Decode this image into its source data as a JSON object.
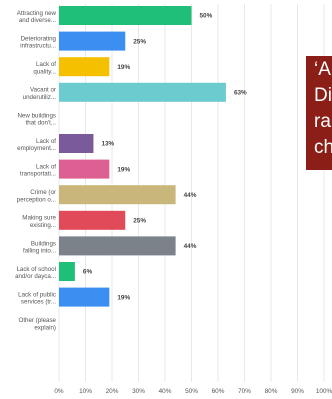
{
  "chart_data": {
    "type": "bar",
    "orientation": "horizontal",
    "categories": [
      [
        "Attracting new",
        "and diverse..."
      ],
      [
        "Deteriorating",
        "infrastructu..."
      ],
      [
        "Lack of",
        "quality..."
      ],
      [
        "Vacant or",
        "underutiliz..."
      ],
      [
        "New buildings",
        "that don't..."
      ],
      [
        "Lack of",
        "employment..."
      ],
      [
        "Lack of",
        "transportati..."
      ],
      [
        "Crime (or",
        "perception o..."
      ],
      [
        "Making sure",
        "existing..."
      ],
      [
        "Buildings",
        "falling into..."
      ],
      [
        "Lack of school",
        "and/or dayca..."
      ],
      [
        "Lack of public",
        "services (tr..."
      ],
      [
        "Other (please",
        "explain)"
      ]
    ],
    "values": [
      50,
      25,
      19,
      63,
      0,
      13,
      19,
      44,
      25,
      44,
      6,
      19,
      0
    ],
    "value_labels": [
      "50%",
      "25%",
      "19%",
      "63%",
      "",
      "13%",
      "19%",
      "44%",
      "25%",
      "44%",
      "6%",
      "19%",
      ""
    ],
    "colors": [
      "#1fbf7a",
      "#3b8ff0",
      "#f5c000",
      "#6ccbcf",
      "#999999",
      "#7b5a9b",
      "#dc6192",
      "#c8b67a",
      "#e04a59",
      "#7b8289",
      "#1fbf7a",
      "#3b8ff0",
      "#f5c000"
    ],
    "xlim": [
      0,
      100
    ],
    "xticks": [
      "0%",
      "10%",
      "20%",
      "30%",
      "40%",
      "50%",
      "60%",
      "70%",
      "80%",
      "90%",
      "100%"
    ],
    "grid": true
  },
  "overlay": {
    "lines": [
      "‘A",
      "Di",
      "ra",
      "ch"
    ]
  }
}
